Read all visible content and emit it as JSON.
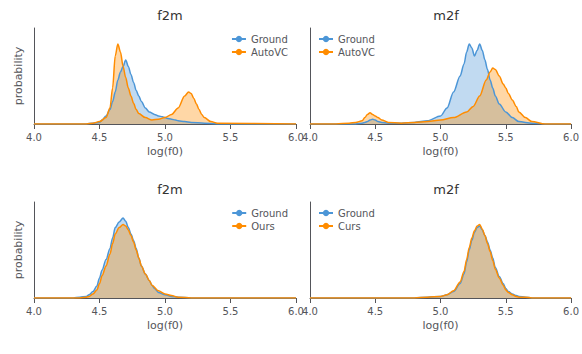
{
  "chart_data": [
    {
      "type": "area",
      "title": "f2m",
      "x_label": "log(f0)",
      "y_label": "probability",
      "xlim": [
        4.0,
        6.0
      ],
      "xticks": [
        {
          "value": 4.0,
          "label": "4.0"
        },
        4.5,
        {
          "value": 5.0,
          "label": "5.0"
        },
        5.5,
        {
          "value": 6.0,
          "label": "6.0"
        }
      ],
      "ylim": [
        0,
        1.2
      ],
      "yticks": [],
      "tick_labels": "x",
      "legend": "upper right",
      "series": [
        {
          "name": "Ground",
          "color": "#4C96D7",
          "x": [
            4.0,
            4.4,
            4.45,
            4.5,
            4.52,
            4.55,
            4.58,
            4.6,
            4.62,
            4.64,
            4.66,
            4.68,
            4.7,
            4.72,
            4.74,
            4.76,
            4.78,
            4.8,
            4.82,
            4.85,
            4.88,
            4.92,
            4.95,
            4.98,
            5.0,
            5.02,
            5.05,
            5.08,
            5.1,
            5.15,
            5.2,
            5.3,
            5.4,
            5.5,
            6.0
          ],
          "values": [
            0.0,
            0.0,
            0.01,
            0.02,
            0.05,
            0.1,
            0.18,
            0.28,
            0.4,
            0.55,
            0.65,
            0.72,
            0.8,
            0.72,
            0.62,
            0.52,
            0.42,
            0.35,
            0.28,
            0.2,
            0.15,
            0.12,
            0.1,
            0.09,
            0.08,
            0.07,
            0.06,
            0.05,
            0.04,
            0.03,
            0.02,
            0.01,
            0.0,
            0.0,
            0.0
          ]
        },
        {
          "name": "AutoVC",
          "color": "#FF8C00",
          "x": [
            4.0,
            4.4,
            4.45,
            4.5,
            4.55,
            4.58,
            4.6,
            4.62,
            4.64,
            4.66,
            4.68,
            4.7,
            4.72,
            4.74,
            4.76,
            4.78,
            4.8,
            4.85,
            4.9,
            4.95,
            5.0,
            5.05,
            5.1,
            5.15,
            5.18,
            5.2,
            5.22,
            5.24,
            5.26,
            5.28,
            5.3,
            5.35,
            5.4,
            6.0
          ],
          "values": [
            0.0,
            0.0,
            0.01,
            0.03,
            0.08,
            0.2,
            0.45,
            0.85,
            1.0,
            0.9,
            0.72,
            0.58,
            0.45,
            0.35,
            0.26,
            0.18,
            0.13,
            0.08,
            0.05,
            0.06,
            0.08,
            0.12,
            0.2,
            0.35,
            0.4,
            0.38,
            0.32,
            0.25,
            0.18,
            0.12,
            0.08,
            0.03,
            0.01,
            0.0
          ]
        }
      ]
    },
    {
      "type": "area",
      "title": "m2f",
      "x_label": "log(f0)",
      "xlim": [
        4.0,
        6.0
      ],
      "xticks": [
        {
          "value": 4.0,
          "label": "4.0"
        },
        4.5,
        {
          "value": 5.0,
          "label": "5.0"
        },
        5.5,
        {
          "value": 6.0,
          "label": "6.0"
        }
      ],
      "ylim": [
        0,
        1.2
      ],
      "yticks": [],
      "tick_labels": "x",
      "legend": "upper left",
      "series": [
        {
          "name": "Ground",
          "color": "#4C96D7",
          "x": [
            4.0,
            4.1,
            4.2,
            4.3,
            4.35,
            4.4,
            4.42,
            4.44,
            4.46,
            4.48,
            4.5,
            4.52,
            4.55,
            4.6,
            4.7,
            4.8,
            4.9,
            5.0,
            5.05,
            5.1,
            5.15,
            5.18,
            5.2,
            5.22,
            5.24,
            5.26,
            5.28,
            5.3,
            5.32,
            5.34,
            5.36,
            5.38,
            5.4,
            5.42,
            5.45,
            5.5,
            5.55,
            5.6,
            5.7,
            5.8,
            6.0
          ],
          "values": [
            0.0,
            0.0,
            0.0,
            0.0,
            0.0,
            0.01,
            0.02,
            0.03,
            0.05,
            0.06,
            0.05,
            0.03,
            0.02,
            0.01,
            0.01,
            0.02,
            0.04,
            0.1,
            0.2,
            0.4,
            0.6,
            0.75,
            0.9,
            1.0,
            0.95,
            0.85,
            0.92,
            1.0,
            0.92,
            0.8,
            0.68,
            0.55,
            0.45,
            0.35,
            0.25,
            0.15,
            0.08,
            0.03,
            0.01,
            0.0,
            0.0
          ]
        },
        {
          "name": "AutoVC",
          "color": "#FF8C00",
          "x": [
            4.0,
            4.1,
            4.2,
            4.3,
            4.35,
            4.4,
            4.42,
            4.44,
            4.46,
            4.48,
            4.5,
            4.52,
            4.55,
            4.6,
            4.7,
            4.8,
            4.9,
            5.0,
            5.1,
            5.2,
            5.25,
            5.3,
            5.35,
            5.38,
            5.4,
            5.42,
            5.45,
            5.48,
            5.5,
            5.52,
            5.55,
            5.58,
            5.6,
            5.65,
            5.7,
            5.8,
            6.0
          ],
          "values": [
            0.0,
            0.0,
            0.0,
            0.01,
            0.02,
            0.04,
            0.08,
            0.12,
            0.14,
            0.12,
            0.1,
            0.08,
            0.05,
            0.02,
            0.01,
            0.02,
            0.03,
            0.05,
            0.08,
            0.15,
            0.22,
            0.35,
            0.55,
            0.65,
            0.7,
            0.68,
            0.6,
            0.5,
            0.45,
            0.38,
            0.3,
            0.22,
            0.15,
            0.08,
            0.03,
            0.0,
            0.0
          ]
        }
      ]
    },
    {
      "type": "area",
      "title": "f2m",
      "x_label": "log(f0)",
      "y_label": "probability",
      "xlim": [
        4.0,
        6.0
      ],
      "xticks": [
        {
          "value": 4.0,
          "label": "4.0"
        },
        4.5,
        {
          "value": 5.0,
          "label": "5.0"
        },
        5.5,
        {
          "value": 6.0,
          "label": "6.0"
        }
      ],
      "ylim": [
        0,
        1.2
      ],
      "yticks": [],
      "tick_labels": "x",
      "legend": "upper right",
      "series": [
        {
          "name": "Ground",
          "color": "#4C96D7",
          "x": [
            4.0,
            4.2,
            4.3,
            4.35,
            4.4,
            4.42,
            4.45,
            4.48,
            4.5,
            4.52,
            4.55,
            4.58,
            4.6,
            4.62,
            4.65,
            4.68,
            4.7,
            4.72,
            4.74,
            4.76,
            4.78,
            4.8,
            4.82,
            4.85,
            4.88,
            4.9,
            4.92,
            4.95,
            5.0,
            5.05,
            5.1,
            5.2,
            5.3,
            6.0
          ],
          "values": [
            0.0,
            0.0,
            0.0,
            0.01,
            0.02,
            0.04,
            0.08,
            0.15,
            0.25,
            0.35,
            0.48,
            0.62,
            0.75,
            0.88,
            0.95,
            1.0,
            0.96,
            0.88,
            0.8,
            0.72,
            0.62,
            0.5,
            0.4,
            0.3,
            0.22,
            0.16,
            0.12,
            0.07,
            0.04,
            0.02,
            0.01,
            0.0,
            0.0,
            0.0
          ]
        },
        {
          "name": "Ours",
          "color": "#FF8C00",
          "x": [
            4.0,
            4.2,
            4.3,
            4.35,
            4.4,
            4.42,
            4.45,
            4.48,
            4.5,
            4.52,
            4.55,
            4.58,
            4.6,
            4.62,
            4.65,
            4.68,
            4.7,
            4.72,
            4.74,
            4.76,
            4.78,
            4.8,
            4.82,
            4.85,
            4.88,
            4.9,
            4.95,
            5.0,
            5.05,
            5.1,
            5.2,
            5.3,
            6.0
          ],
          "values": [
            0.0,
            0.0,
            0.0,
            0.0,
            0.01,
            0.02,
            0.05,
            0.1,
            0.18,
            0.28,
            0.4,
            0.55,
            0.68,
            0.8,
            0.88,
            0.92,
            0.9,
            0.85,
            0.78,
            0.7,
            0.6,
            0.5,
            0.4,
            0.3,
            0.22,
            0.16,
            0.09,
            0.05,
            0.03,
            0.01,
            0.0,
            0.0,
            0.0
          ]
        }
      ]
    },
    {
      "type": "area",
      "title": "m2f",
      "x_label": "log(f0)",
      "xlim": [
        4.0,
        6.0
      ],
      "xticks": [
        {
          "value": 4.0,
          "label": "4.0"
        },
        4.5,
        {
          "value": 5.0,
          "label": "5.0"
        },
        5.5,
        {
          "value": 6.0,
          "label": "6.0"
        }
      ],
      "ylim": [
        0,
        1.2
      ],
      "yticks": [],
      "tick_labels": "x",
      "legend": "upper left",
      "series": [
        {
          "name": "Ground",
          "color": "#4C96D7",
          "x": [
            4.0,
            4.8,
            4.9,
            5.0,
            5.05,
            5.1,
            5.15,
            5.18,
            5.2,
            5.22,
            5.24,
            5.26,
            5.28,
            5.3,
            5.32,
            5.34,
            5.36,
            5.38,
            5.4,
            5.42,
            5.45,
            5.48,
            5.5,
            5.52,
            5.55,
            5.58,
            5.6,
            5.65,
            5.7,
            5.8,
            6.0
          ],
          "values": [
            0.0,
            0.0,
            0.01,
            0.02,
            0.04,
            0.08,
            0.18,
            0.3,
            0.45,
            0.6,
            0.72,
            0.82,
            0.88,
            0.9,
            0.85,
            0.78,
            0.7,
            0.6,
            0.5,
            0.38,
            0.27,
            0.18,
            0.12,
            0.08,
            0.05,
            0.03,
            0.02,
            0.01,
            0.0,
            0.0,
            0.0
          ]
        },
        {
          "name": "Curs",
          "color": "#FF8C00",
          "x": [
            4.0,
            4.8,
            4.9,
            5.0,
            5.05,
            5.1,
            5.15,
            5.18,
            5.2,
            5.22,
            5.24,
            5.26,
            5.28,
            5.3,
            5.32,
            5.34,
            5.36,
            5.38,
            5.4,
            5.42,
            5.45,
            5.48,
            5.5,
            5.52,
            5.55,
            5.58,
            5.6,
            5.65,
            5.7,
            5.8,
            6.0
          ],
          "values": [
            0.0,
            0.0,
            0.01,
            0.02,
            0.04,
            0.09,
            0.2,
            0.33,
            0.48,
            0.63,
            0.75,
            0.84,
            0.9,
            0.92,
            0.86,
            0.78,
            0.68,
            0.58,
            0.47,
            0.36,
            0.25,
            0.16,
            0.1,
            0.07,
            0.04,
            0.02,
            0.01,
            0.01,
            0.0,
            0.0,
            0.0
          ]
        }
      ]
    }
  ]
}
